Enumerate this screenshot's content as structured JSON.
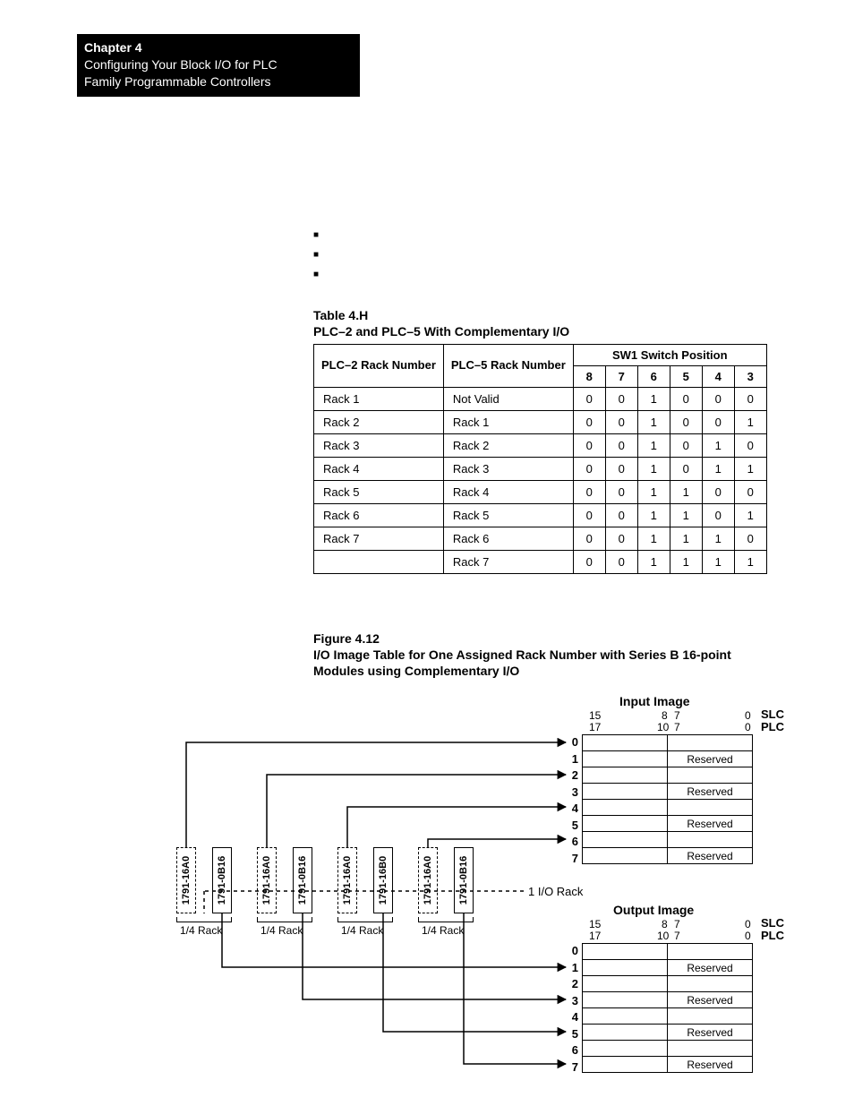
{
  "header": {
    "chapter": "Chapter 4",
    "line1": "Configuring Your Block I/O for PLC",
    "line2": "Family Programmable Controllers"
  },
  "table_h": {
    "label": "Table 4.H",
    "title": "PLC–2 and PLC–5 With Complementary I/O",
    "headers": {
      "plc2": "PLC–2 Rack Number",
      "plc5": "PLC–5 Rack Number",
      "sw1": "SW1 Switch Position",
      "cols": [
        "8",
        "7",
        "6",
        "5",
        "4",
        "3"
      ]
    },
    "rows": [
      {
        "plc2": "Rack 1",
        "plc5": "Not Valid",
        "sw": [
          "0",
          "0",
          "1",
          "0",
          "0",
          "0"
        ]
      },
      {
        "plc2": "Rack 2",
        "plc5": "Rack 1",
        "sw": [
          "0",
          "0",
          "1",
          "0",
          "0",
          "1"
        ]
      },
      {
        "plc2": "Rack 3",
        "plc5": "Rack 2",
        "sw": [
          "0",
          "0",
          "1",
          "0",
          "1",
          "0"
        ]
      },
      {
        "plc2": "Rack 4",
        "plc5": "Rack 3",
        "sw": [
          "0",
          "0",
          "1",
          "0",
          "1",
          "1"
        ]
      },
      {
        "plc2": "Rack 5",
        "plc5": "Rack 4",
        "sw": [
          "0",
          "0",
          "1",
          "1",
          "0",
          "0"
        ]
      },
      {
        "plc2": "Rack 6",
        "plc5": "Rack 5",
        "sw": [
          "0",
          "0",
          "1",
          "1",
          "0",
          "1"
        ]
      },
      {
        "plc2": "Rack 7",
        "plc5": "Rack 6",
        "sw": [
          "0",
          "0",
          "1",
          "1",
          "1",
          "0"
        ]
      },
      {
        "plc2": "",
        "plc5": "Rack 7",
        "sw": [
          "0",
          "0",
          "1",
          "1",
          "1",
          "1"
        ]
      }
    ]
  },
  "figure": {
    "label": "Figure 4.12",
    "title1": "I/O Image Table for One Assigned Rack Number with Series B 16-point",
    "title2": "Modules using Complementary I/O"
  },
  "diagram": {
    "input_image": "Input Image",
    "output_image": "Output Image",
    "reserved": "Reserved",
    "slc": "SLC",
    "plc": "PLC",
    "io_rack": "1 I/O Rack",
    "quarter_rack": "1/4 Rack",
    "bit15": "15",
    "bit17": "17",
    "bit8": "8",
    "bit10": "10",
    "bit7a": "7",
    "bit7b": "7",
    "bit0a": "0",
    "bit0b": "0",
    "rows": [
      "0",
      "1",
      "2",
      "3",
      "4",
      "5",
      "6",
      "7"
    ],
    "modules": [
      {
        "label": "1791-16A0",
        "solid": false
      },
      {
        "label": "1791-0B16",
        "solid": true
      },
      {
        "label": "1791-16A0",
        "solid": false
      },
      {
        "label": "1791-0B16",
        "solid": true
      },
      {
        "label": "1791-16A0",
        "solid": false
      },
      {
        "label": "1791-16B0",
        "solid": true
      },
      {
        "label": "1791-16A0",
        "solid": false
      },
      {
        "label": "1791-0B16",
        "solid": true
      }
    ]
  }
}
